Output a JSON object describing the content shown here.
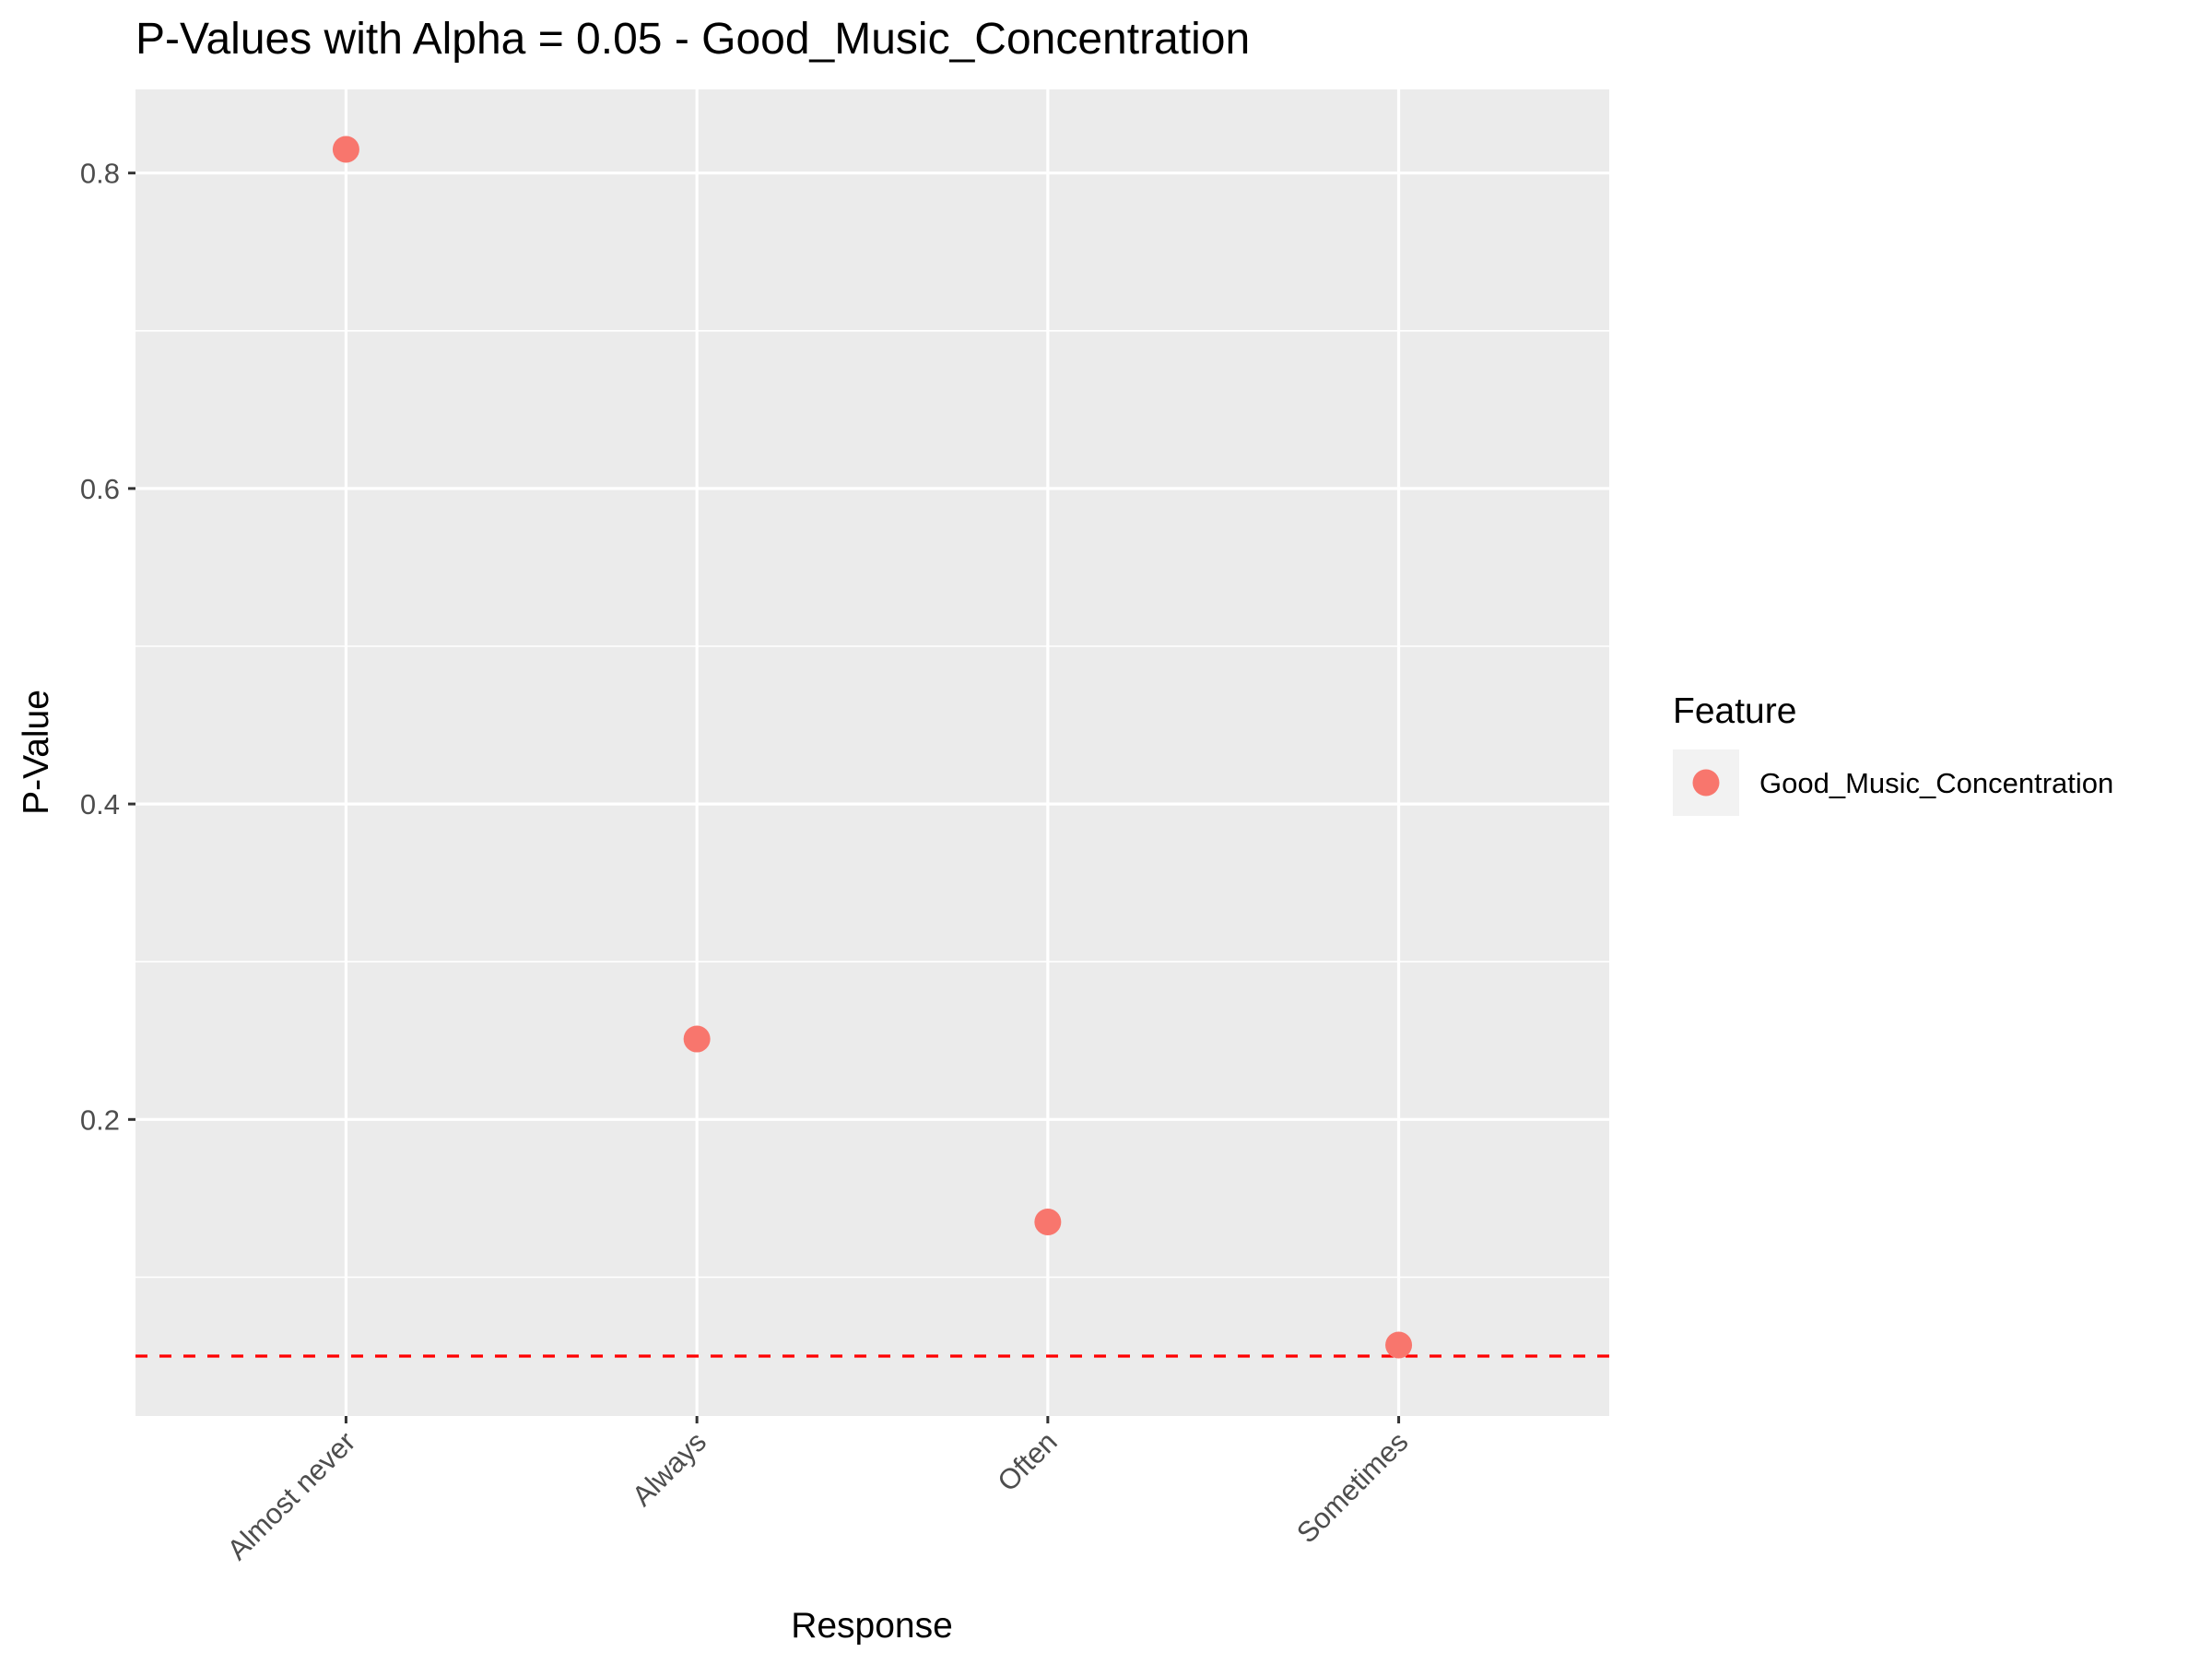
{
  "chart_data": {
    "type": "scatter",
    "title": "P-Values with Alpha = 0.05 - Good_Music_Concentration",
    "xlabel": "Response",
    "ylabel": "P-Value",
    "categories": [
      "Almost never",
      "Always",
      "Often",
      "Sometimes"
    ],
    "series": [
      {
        "name": "Good_Music_Concentration",
        "values": [
          0.815,
          0.251,
          0.135,
          0.057
        ],
        "color": "#F8766D"
      }
    ],
    "y_ticks": [
      0.2,
      0.4,
      0.6,
      0.8
    ],
    "y_tick_labels": [
      "0.2",
      "0.4",
      "0.6",
      "0.8"
    ],
    "ylim": [
      0.012,
      0.853
    ],
    "reference_line": {
      "y": 0.05,
      "color": "#FF0000",
      "style": "dashed"
    },
    "legend": {
      "title": "Feature",
      "placement": "right",
      "entries": [
        "Good_Music_Concentration"
      ]
    },
    "grid": true,
    "panel_background": "#EBEBEB",
    "grid_color": "#FFFFFF"
  }
}
